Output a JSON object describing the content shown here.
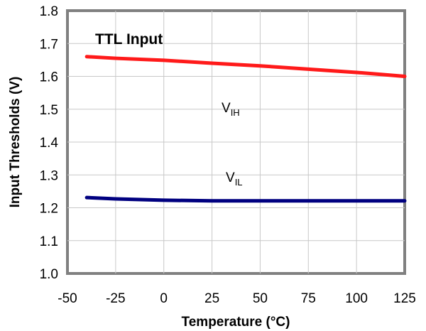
{
  "chart_data": {
    "type": "line",
    "title": "",
    "xlabel": "Temperature (°C)",
    "ylabel": "Input Thresholds (V)",
    "xlim": [
      -50,
      125
    ],
    "ylim": [
      1.0,
      1.8
    ],
    "x_ticks": [
      "-50",
      "-25",
      "0",
      "25",
      "50",
      "75",
      "100",
      "125"
    ],
    "y_ticks": [
      "1.0",
      "1.1",
      "1.2",
      "1.3",
      "1.4",
      "1.5",
      "1.6",
      "1.7",
      "1.8"
    ],
    "grid": true,
    "annotations": {
      "condition": "TTL Input",
      "vih_main": "V",
      "vih_sub": "IH",
      "vil_main": "V",
      "vil_sub": "IL"
    },
    "series": [
      {
        "color": "#ff1a1a",
        "x": [
          -40,
          -25,
          0,
          25,
          50,
          75,
          100,
          125
        ],
        "y": [
          1.66,
          1.655,
          1.649,
          1.64,
          1.632,
          1.622,
          1.612,
          1.6
        ]
      },
      {
        "color": "#000080",
        "x": [
          -40,
          -25,
          0,
          25,
          50,
          75,
          100,
          125
        ],
        "y": [
          1.231,
          1.227,
          1.223,
          1.221,
          1.221,
          1.221,
          1.221,
          1.221
        ]
      }
    ]
  }
}
